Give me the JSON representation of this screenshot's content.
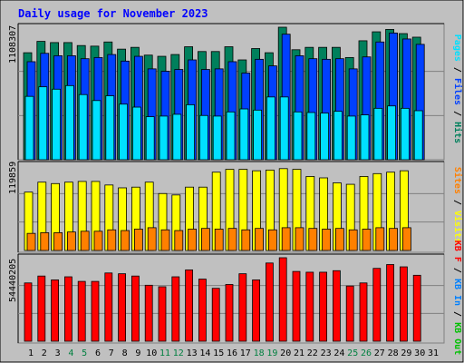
{
  "chart_data": {
    "type": "bar",
    "title": "Daily usage for November 2023",
    "days": [
      "1",
      "2",
      "3",
      "4",
      "5",
      "6",
      "7",
      "8",
      "9",
      "10",
      "11",
      "12",
      "13",
      "14",
      "15",
      "16",
      "17",
      "18",
      "19",
      "20",
      "21",
      "22",
      "23",
      "24",
      "25",
      "26",
      "27",
      "28",
      "29",
      "30",
      "31"
    ],
    "weekend_days": [
      "4",
      "5",
      "11",
      "12",
      "18",
      "19",
      "25",
      "26"
    ],
    "panels": [
      {
        "id": "hits",
        "max_label": "1108307",
        "ymax": 1108307,
        "legend": [
          {
            "label": "Pages",
            "color": "#00e0ff"
          },
          {
            "label": "Files",
            "color": "#0040ff"
          },
          {
            "label": "Hits",
            "color": "#00805c"
          }
        ],
        "series": [
          {
            "name": "Hits",
            "color": "#00805c",
            "values": [
              895000,
              990000,
              980000,
              980000,
              955000,
              950000,
              985000,
              925000,
              940000,
              875000,
              865000,
              880000,
              945000,
              905000,
              905000,
              945000,
              835000,
              930000,
              895000,
              1108307,
              920000,
              940000,
              940000,
              940000,
              855000,
              995000,
              1070000,
              1090000,
              1055000,
              1025000,
              null
            ]
          },
          {
            "name": "Files",
            "color": "#0040ff",
            "values": [
              820000,
              890000,
              870000,
              870000,
              845000,
              855000,
              880000,
              825000,
              865000,
              760000,
              740000,
              755000,
              835000,
              755000,
              760000,
              820000,
              725000,
              840000,
              785000,
              1050000,
              870000,
              845000,
              840000,
              845000,
              760000,
              860000,
              985000,
              1060000,
              1010000,
              965000,
              null
            ]
          },
          {
            "name": "Pages",
            "color": "#00e0ff",
            "values": [
              530000,
              610000,
              590000,
              620000,
              545000,
              495000,
              535000,
              465000,
              440000,
              360000,
              365000,
              380000,
              460000,
              370000,
              365000,
              400000,
              425000,
              415000,
              525000,
              525000,
              400000,
              395000,
              390000,
              405000,
              365000,
              375000,
              430000,
              450000,
              430000,
              410000,
              null
            ]
          }
        ]
      },
      {
        "id": "visits",
        "max_label": "119859",
        "ymax": 119859,
        "legend": [
          {
            "label": "Sites",
            "color": "#ff8000"
          },
          {
            "label": "Visits",
            "color": "#ffff00"
          }
        ],
        "series": [
          {
            "name": "Visits",
            "color": "#ffff00",
            "values": [
              82000,
              96000,
              94000,
              96000,
              97000,
              97000,
              92000,
              88000,
              89000,
              96000,
              80000,
              78000,
              89000,
              89000,
              110000,
              114000,
              114000,
              112000,
              113000,
              115000,
              114000,
              104000,
              102000,
              95000,
              93000,
              104000,
              108000,
              110000,
              112000,
              null,
              null
            ]
          },
          {
            "name": "Sites",
            "color": "#ff8000",
            "values": [
              24000,
              25000,
              25000,
              26000,
              27000,
              27000,
              29000,
              28000,
              30000,
              32000,
              29000,
              28000,
              30000,
              31000,
              30000,
              31000,
              29000,
              31000,
              29000,
              32000,
              32000,
              31000,
              30000,
              31000,
              29000,
              30000,
              32000,
              31000,
              32000,
              null,
              null
            ]
          }
        ]
      },
      {
        "id": "kbytes",
        "max_label": "54440205",
        "ymax": 54440205,
        "legend": [
          {
            "label": "KB F",
            "color": "#ff0000"
          },
          {
            "label": "KB In",
            "color": "#0080ff"
          },
          {
            "label": "KB Out",
            "color": "#00c000"
          }
        ],
        "series": [
          {
            "name": "KB F",
            "color": "#ff0000",
            "values": [
              38000000,
              42500000,
              40000000,
              42000000,
              39000000,
              39000000,
              44500000,
              44000000,
              42500000,
              36500000,
              35500000,
              42000000,
              46500000,
              40500000,
              34500000,
              37000000,
              44000000,
              40000000,
              51000000,
              54440205,
              45500000,
              45000000,
              45000000,
              46000000,
              36000000,
              38000000,
              47500000,
              50000000,
              48500000,
              43000000,
              null
            ]
          }
        ]
      }
    ]
  }
}
